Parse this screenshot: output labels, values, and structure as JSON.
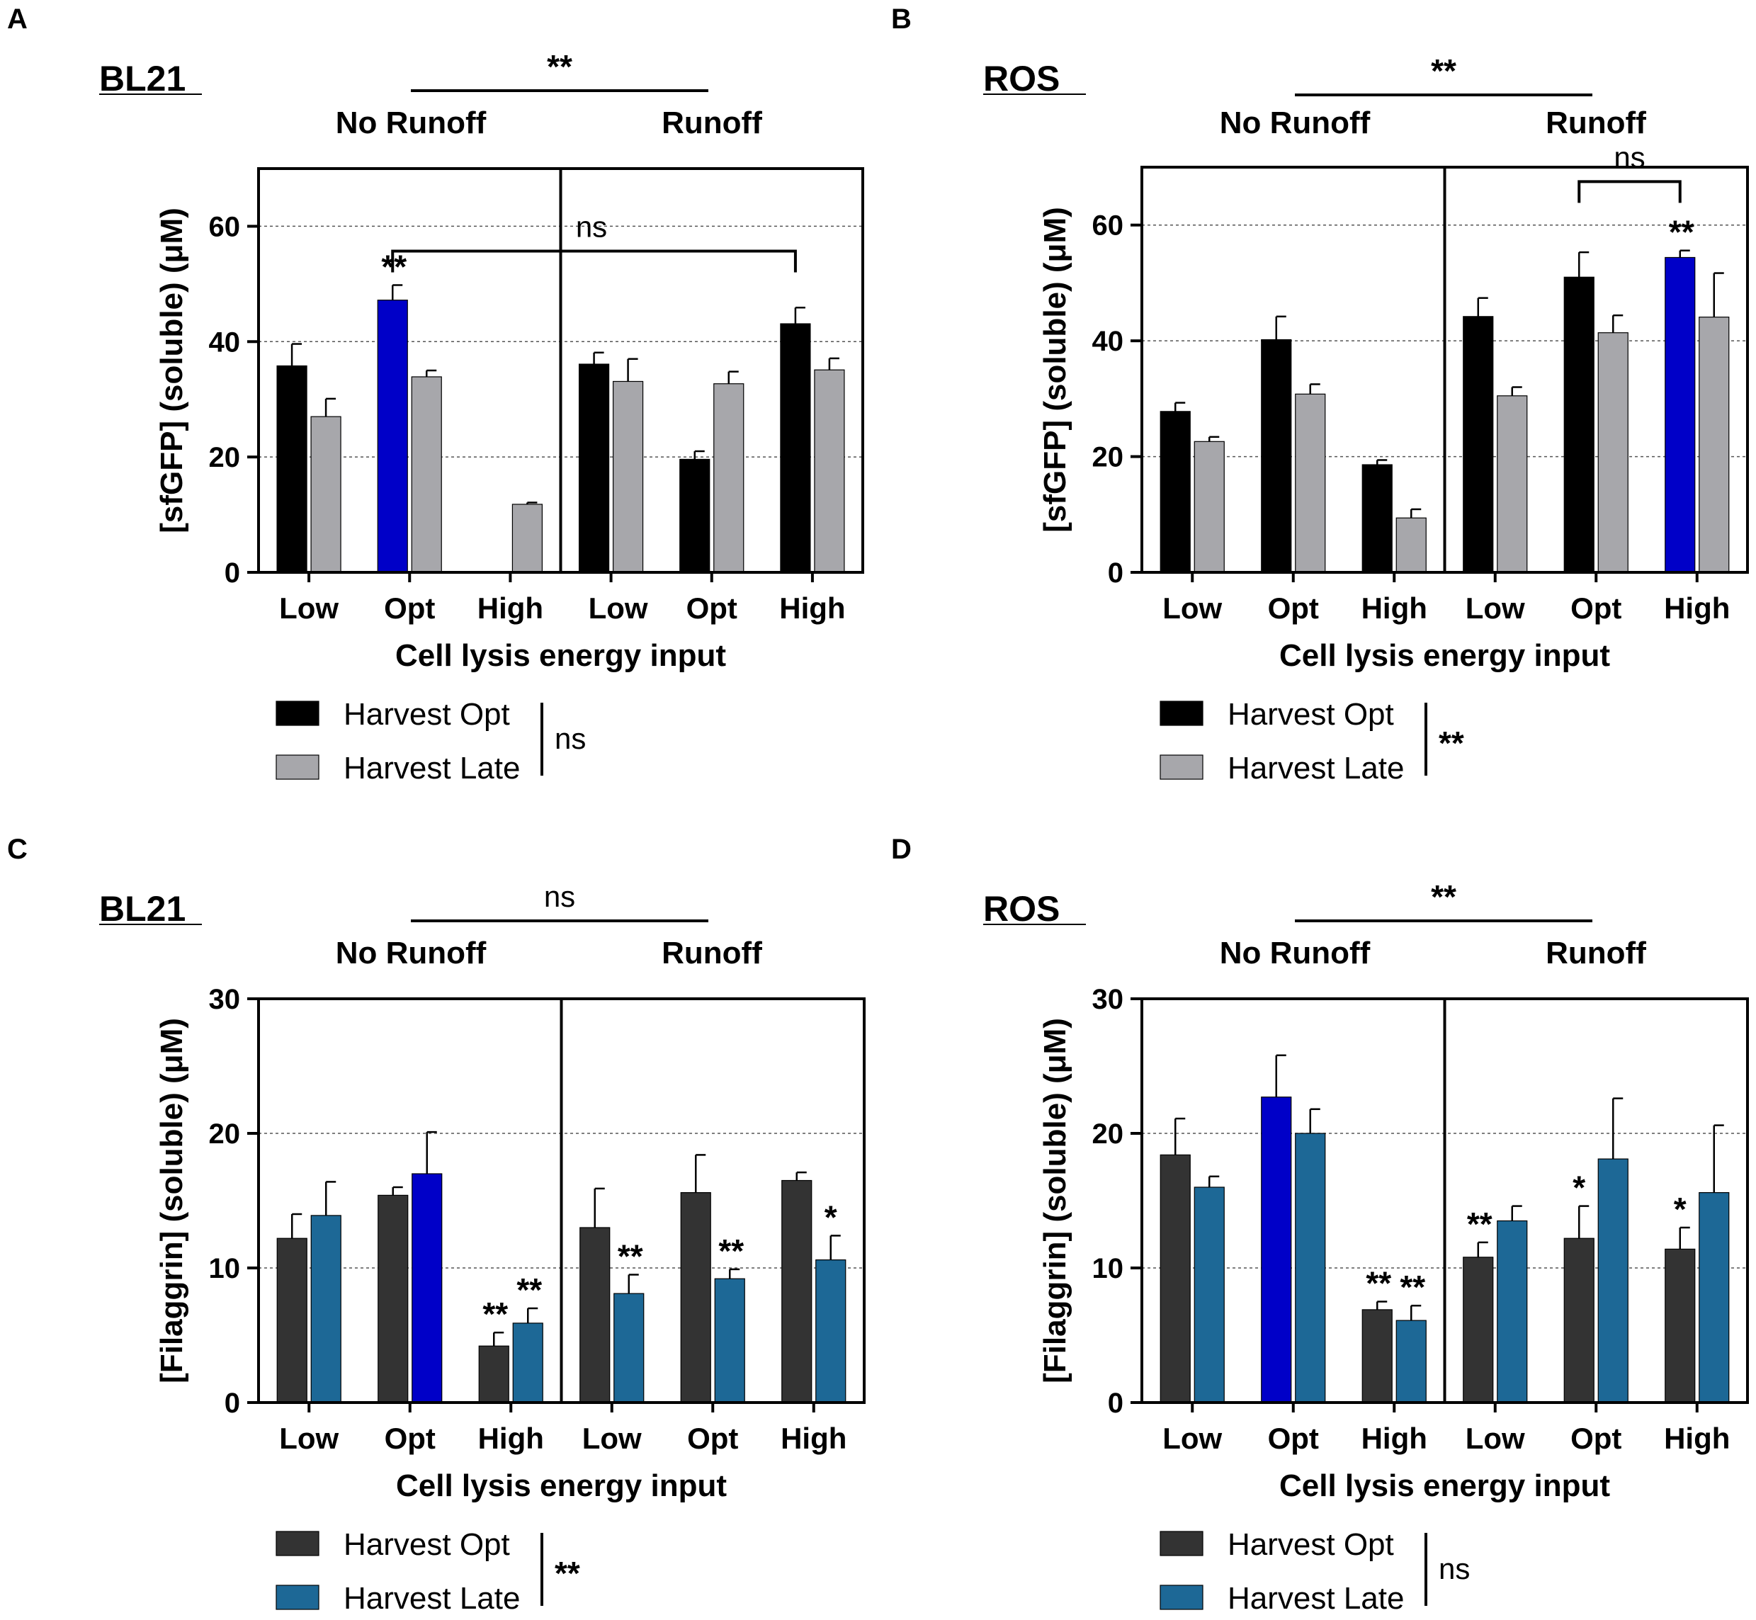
{
  "colors": {
    "black": "#000000",
    "gray": "#a7a7ab",
    "dark": "#333333",
    "teal": "#1d6896",
    "blue": "#0000c8"
  },
  "chart_data": [
    {
      "panel": "A",
      "type": "bar",
      "strain": "BL21",
      "title_top_sig": "**",
      "groups": [
        "No Runoff",
        "Runoff"
      ],
      "categories": [
        "Low",
        "Opt",
        "High",
        "Low",
        "Opt",
        "High"
      ],
      "xlabel": "Cell lysis energy input",
      "ylabel": "[sfGFP] (soluble) (μM)",
      "ylim": [
        0,
        70
      ],
      "yticks": [
        0,
        20,
        40,
        60
      ],
      "gridlines": [
        20,
        40,
        60
      ],
      "series": [
        {
          "name": "Harvest Opt",
          "color": "black",
          "values": [
            35.8,
            47.2,
            0,
            36.1,
            19.6,
            43.1
          ],
          "errors": [
            3.8,
            2.6,
            0,
            2.0,
            1.4,
            2.8
          ]
        },
        {
          "name": "Harvest Late",
          "color": "gray",
          "values": [
            27.0,
            33.9,
            11.8,
            33.1,
            32.7,
            35.1
          ],
          "errors": [
            3.1,
            1.1,
            0.3,
            3.9,
            2.1,
            2.0
          ]
        }
      ],
      "highlight": [
        {
          "series": 0,
          "index": 1
        }
      ],
      "bar_annotations": [
        {
          "series": 0,
          "index": 1,
          "text": "**"
        }
      ],
      "bracket": {
        "from": [
          0,
          1
        ],
        "to": [
          0,
          5
        ],
        "label": "ns"
      },
      "legend_sig": "ns"
    },
    {
      "panel": "B",
      "type": "bar",
      "strain": "ROS",
      "title_top_sig": "**",
      "groups": [
        "No Runoff",
        "Runoff"
      ],
      "categories": [
        "Low",
        "Opt",
        "High",
        "Low",
        "Opt",
        "High"
      ],
      "xlabel": "Cell lysis energy input",
      "ylabel": "[sfGFP] (soluble) (μM)",
      "ylim": [
        0,
        70
      ],
      "yticks": [
        0,
        20,
        40,
        60
      ],
      "gridlines": [
        20,
        40,
        60
      ],
      "series": [
        {
          "name": "Harvest Opt",
          "color": "black",
          "values": [
            27.8,
            40.2,
            18.6,
            44.2,
            51.0,
            54.4
          ],
          "errors": [
            1.5,
            4.0,
            0.8,
            3.2,
            4.3,
            1.2
          ]
        },
        {
          "name": "Harvest Late",
          "color": "gray",
          "values": [
            22.6,
            30.8,
            9.4,
            30.5,
            41.4,
            44.1
          ],
          "errors": [
            0.8,
            1.7,
            1.5,
            1.5,
            3.0,
            7.6
          ]
        }
      ],
      "highlight": [
        {
          "series": 0,
          "index": 5
        }
      ],
      "bar_annotations": [
        {
          "series": 0,
          "index": 5,
          "text": "**"
        }
      ],
      "bracket": {
        "from": [
          0,
          4
        ],
        "to": [
          0,
          5
        ],
        "label": "ns"
      },
      "legend_sig": "**"
    },
    {
      "panel": "C",
      "type": "bar",
      "strain": "BL21",
      "title_top_sig": "ns",
      "groups": [
        "No Runoff",
        "Runoff"
      ],
      "categories": [
        "Low",
        "Opt",
        "High",
        "Low",
        "Opt",
        "High"
      ],
      "xlabel": "Cell lysis energy input",
      "ylabel": "[Filaggrin] (soluble) (μM)",
      "ylim": [
        0,
        30
      ],
      "yticks": [
        0,
        10,
        20,
        30
      ],
      "gridlines": [
        10,
        20
      ],
      "series": [
        {
          "name": "Harvest Opt",
          "color": "dark",
          "values": [
            12.2,
            15.4,
            4.2,
            13.0,
            15.6,
            16.5
          ],
          "errors": [
            1.8,
            0.6,
            1.0,
            2.9,
            2.8,
            0.6
          ]
        },
        {
          "name": "Harvest Late",
          "color": "teal",
          "values": [
            13.9,
            17.0,
            5.9,
            8.1,
            9.2,
            10.6
          ],
          "errors": [
            2.5,
            3.1,
            1.1,
            1.4,
            0.7,
            1.8
          ]
        }
      ],
      "highlight": [
        {
          "series": 1,
          "index": 1
        }
      ],
      "bar_annotations": [
        {
          "series": 0,
          "index": 2,
          "text": "**"
        },
        {
          "series": 1,
          "index": 2,
          "text": "**"
        },
        {
          "series": 1,
          "index": 3,
          "text": "**"
        },
        {
          "series": 1,
          "index": 4,
          "text": "**"
        },
        {
          "series": 1,
          "index": 5,
          "text": "*"
        }
      ],
      "legend_sig": "**"
    },
    {
      "panel": "D",
      "type": "bar",
      "strain": "ROS",
      "title_top_sig": "**",
      "groups": [
        "No Runoff",
        "Runoff"
      ],
      "categories": [
        "Low",
        "Opt",
        "High",
        "Low",
        "Opt",
        "High"
      ],
      "xlabel": "Cell lysis energy input",
      "ylabel": "[Filaggrin] (soluble) (μM)",
      "ylim": [
        0,
        30
      ],
      "yticks": [
        0,
        10,
        20,
        30
      ],
      "gridlines": [
        10,
        20
      ],
      "series": [
        {
          "name": "Harvest Opt",
          "color": "dark",
          "values": [
            18.4,
            22.7,
            6.9,
            10.8,
            12.2,
            11.4
          ],
          "errors": [
            2.7,
            3.1,
            0.6,
            1.1,
            2.4,
            1.6
          ]
        },
        {
          "name": "Harvest Late",
          "color": "teal",
          "values": [
            16.0,
            20.0,
            6.1,
            13.5,
            18.1,
            15.6
          ],
          "errors": [
            0.8,
            1.8,
            1.1,
            1.1,
            4.5,
            5.0
          ]
        }
      ],
      "highlight": [
        {
          "series": 0,
          "index": 1
        }
      ],
      "bar_annotations": [
        {
          "series": 0,
          "index": 2,
          "text": "**"
        },
        {
          "series": 1,
          "index": 2,
          "text": "**"
        },
        {
          "series": 0,
          "index": 3,
          "text": "**"
        },
        {
          "series": 0,
          "index": 4,
          "text": "*"
        },
        {
          "series": 0,
          "index": 5,
          "text": "*"
        }
      ],
      "legend_sig": "ns"
    }
  ]
}
